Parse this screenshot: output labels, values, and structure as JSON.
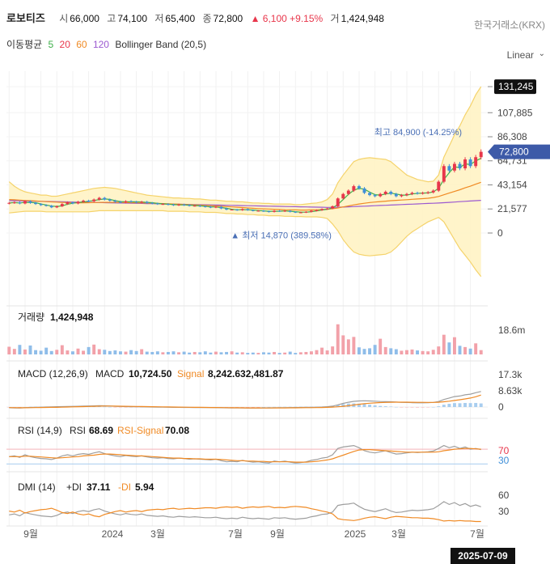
{
  "header": {
    "name": "로보티즈",
    "open_label": "시",
    "open": "66,000",
    "high_label": "고",
    "high": "74,100",
    "low_label": "저",
    "low": "65,400",
    "close_label": "종",
    "close": "72,800",
    "change": "▲ 6,100 +9.15%",
    "volume_label": "거",
    "volume": "1,424,948",
    "exchange": "한국거래소(KRX)"
  },
  "indicators": {
    "ma_label": "이동평균",
    "ma_periods": [
      "5",
      "20",
      "60",
      "120"
    ],
    "bb_label": "Bollinger Band (20,5)"
  },
  "scale_mode": "Linear",
  "colors": {
    "up": "#e8364b",
    "down": "#3f8fd8",
    "ma5": "#3fb04a",
    "ma20": "#e8364b",
    "ma60": "#f08a24",
    "ma120": "#9b59d0",
    "bb_fill": "#fff3c4",
    "bb_line": "#f5d36b",
    "macd": "#9e9e9e",
    "signal": "#f08a24"
  },
  "price_axis": {
    "ticks": [
      "131,245",
      "107,885",
      "86,308",
      "64,731",
      "43,154",
      "21,577",
      "0"
    ],
    "current_label": "72,800",
    "max_label": "131,245"
  },
  "annotations": {
    "high": "최고 84,900 (-14.25%)",
    "low": "▲ 최저 14,870 (389.58%)"
  },
  "panels": {
    "volume": {
      "title": "거래량",
      "value": "1,424,948",
      "axis": "18.6m"
    },
    "macd": {
      "title": "MACD (12,26,9)",
      "macd_label": "MACD",
      "macd_value": "10,724.50",
      "signal_label": "Signal",
      "signal_value": "8,242.632,481.87",
      "axis": [
        "17.3k",
        "8.63k",
        "0"
      ]
    },
    "rsi": {
      "title": "RSI (14,9)",
      "rsi_label": "RSI",
      "rsi_value": "68.69",
      "signal_label": "RSI-Signal",
      "signal_value": "70.08",
      "axis": [
        "70",
        "30"
      ]
    },
    "dmi": {
      "title": "DMI (14)",
      "pdi_label": "+DI",
      "pdi_value": "37.11",
      "mdi_label": "-DI",
      "mdi_value": "5.94",
      "axis": [
        "60",
        "30"
      ]
    }
  },
  "x_axis_labels": [
    "9월",
    "2024",
    "3월",
    "7월",
    "9월",
    "2025",
    "3월",
    "7월"
  ],
  "crosshair_date": "2025-07-09",
  "chart_data": {
    "type": "line",
    "series": [
      {
        "name": "Close",
        "values": [
          27000,
          27500,
          26500,
          28500,
          27000,
          26000,
          25000,
          24500,
          23000,
          24000,
          26000,
          27500,
          26500,
          28000,
          29000,
          28500,
          30000,
          31500,
          30000,
          29000,
          28000,
          27500,
          28500,
          28000,
          27500,
          28000,
          27000,
          26500,
          26000,
          26000,
          25500,
          25000,
          25500,
          25000,
          24500,
          24500,
          24000,
          23500,
          23000,
          23500,
          22000,
          21000,
          21000,
          20500,
          21500,
          20500,
          20000,
          20000,
          19500,
          19000,
          20000,
          19500,
          20000,
          19000,
          18500,
          18500,
          19000,
          20000,
          20500,
          21500,
          22000,
          24000,
          31000,
          35000,
          38000,
          42000,
          40000,
          36000,
          34000,
          33000,
          35000,
          37000,
          35000,
          33000,
          34000,
          35000,
          36000,
          35500,
          36000,
          36500,
          38000,
          46000,
          60000,
          56000,
          62000,
          58000,
          66000,
          60000,
          68000,
          72800
        ]
      },
      {
        "name": "BB Upper",
        "values": [
          46000,
          42000,
          39000,
          37000,
          36000,
          35000,
          34000,
          34000,
          33000,
          33000,
          34000,
          35000,
          36000,
          37000,
          38000,
          39000,
          40000,
          40500,
          41000,
          40500,
          40000,
          39000,
          38000,
          37000,
          36000,
          35000,
          34000,
          33500,
          33000,
          32500,
          32000,
          31500,
          31500,
          31000,
          31000,
          30500,
          30500,
          30000,
          29500,
          29500,
          29000,
          28500,
          28500,
          28000,
          28000,
          27500,
          27000,
          27000,
          26500,
          26500,
          26000,
          26000,
          26000,
          26000,
          25500,
          25500,
          26000,
          26500,
          27000,
          28000,
          30000,
          35000,
          45000,
          52000,
          58000,
          64000,
          66000,
          67000,
          67500,
          67000,
          66500,
          66000,
          64000,
          60000,
          56000,
          52000,
          50000,
          48000,
          47000,
          46000,
          46500,
          52000,
          68000,
          78000,
          88000,
          96000,
          106000,
          114000,
          124000,
          131245
        ]
      },
      {
        "name": "BB Lower",
        "values": [
          18000,
          18500,
          19000,
          19500,
          19500,
          19500,
          19500,
          19000,
          19000,
          19000,
          19000,
          19000,
          19000,
          19000,
          19000,
          19000,
          19500,
          20000,
          20000,
          20000,
          20000,
          20000,
          20000,
          20000,
          20000,
          20000,
          20000,
          20000,
          20000,
          20000,
          19500,
          19500,
          19500,
          19500,
          19000,
          19000,
          19000,
          18500,
          18500,
          18500,
          18000,
          17500,
          17500,
          17000,
          17000,
          16500,
          16500,
          16000,
          16000,
          15500,
          15500,
          15500,
          15000,
          15000,
          14800,
          14800,
          14500,
          14500,
          14500,
          14000,
          13000,
          8000,
          2000,
          -6000,
          -12000,
          -17000,
          -19000,
          -20000,
          -20500,
          -20000,
          -19500,
          -19000,
          -17000,
          -13000,
          -8000,
          -3000,
          1000,
          4000,
          7000,
          10000,
          12000,
          14000,
          10000,
          2000,
          -6000,
          -14000,
          -20000,
          -26000,
          -33000,
          -39000
        ]
      },
      {
        "name": "MA60",
        "values": [
          30000,
          29800,
          29500,
          29200,
          29000,
          28700,
          28400,
          28100,
          27900,
          27700,
          27500,
          27300,
          27200,
          27100,
          27100,
          27200,
          27300,
          27400,
          27500,
          27500,
          27500,
          27400,
          27300,
          27200,
          27100,
          27000,
          26900,
          26700,
          26500,
          26400,
          26200,
          26000,
          25800,
          25600,
          25400,
          25200,
          25000,
          24800,
          24600,
          24300,
          24000,
          23700,
          23400,
          23100,
          22800,
          22500,
          22200,
          21900,
          21700,
          21500,
          21300,
          21100,
          20900,
          20800,
          20700,
          20600,
          20600,
          20700,
          20800,
          21000,
          21300,
          21800,
          22500,
          23400,
          24300,
          25200,
          26000,
          26700,
          27300,
          27800,
          28200,
          28600,
          29000,
          29300,
          29600,
          29900,
          30200,
          30500,
          30800,
          31200,
          31800,
          32800,
          34300,
          35800,
          37300,
          38800,
          40500,
          42000,
          43800,
          45500
        ]
      },
      {
        "name": "MA120",
        "values": [
          29000,
          28900,
          28800,
          28700,
          28600,
          28500,
          28400,
          28300,
          28200,
          28100,
          28000,
          27900,
          27800,
          27700,
          27600,
          27500,
          27400,
          27300,
          27200,
          27100,
          27000,
          26900,
          26800,
          26700,
          26600,
          26500,
          26400,
          26300,
          26200,
          26100,
          26000,
          25900,
          25800,
          25700,
          25600,
          25500,
          25400,
          25300,
          25200,
          25100,
          25000,
          24900,
          24800,
          24700,
          24600,
          24500,
          24400,
          24300,
          24200,
          24100,
          24000,
          23900,
          23800,
          23700,
          23600,
          23500,
          23400,
          23300,
          23200,
          23100,
          23000,
          23000,
          23100,
          23300,
          23500,
          23700,
          23900,
          24100,
          24300,
          24500,
          24700,
          24900,
          25100,
          25300,
          25500,
          25700,
          25900,
          26100,
          26300,
          26500,
          26700,
          26900,
          27200,
          27500,
          27800,
          28100,
          28400,
          28700,
          29000,
          29300
        ]
      }
    ],
    "ylim": [
      -45000,
      140000
    ],
    "high": 84900,
    "low": 14870,
    "last_close": 72800,
    "volume": [
      2.5,
      1.8,
      3.1,
      1.6,
      2.9,
      1.4,
      1.2,
      2.2,
      1.1,
      1.5,
      3.0,
      1.3,
      1.0,
      1.9,
      1.2,
      2.4,
      3.2,
      1.7,
      1.5,
      1.1,
      1.3,
      1.0,
      0.9,
      1.4,
      1.1,
      1.7,
      0.9,
      0.8,
      1.0,
      0.7,
      0.8,
      1.0,
      0.7,
      0.9,
      0.6,
      0.8,
      0.7,
      1.0,
      0.6,
      0.9,
      0.7,
      0.8,
      1.0,
      0.6,
      0.7,
      0.5,
      0.6,
      0.5,
      0.7,
      0.6,
      0.8,
      0.5,
      0.6,
      0.9,
      0.5,
      0.7,
      0.8,
      1.0,
      1.4,
      2.2,
      1.3,
      2.6,
      9.8,
      6.2,
      4.9,
      5.7,
      2.3,
      1.8,
      2.0,
      3.1,
      5.1,
      2.4,
      2.0,
      1.7,
      1.2,
      1.4,
      1.6,
      1.3,
      1.1,
      1.0,
      1.5,
      2.6,
      6.4,
      3.9,
      5.6,
      2.8,
      2.4,
      1.9,
      3.6,
      1.4
    ],
    "volume_unit": "m",
    "macd": [
      -500,
      -600,
      -700,
      -500,
      -300,
      -200,
      -100,
      0,
      100,
      200,
      300,
      400,
      450,
      500,
      600,
      700,
      800,
      900,
      850,
      700,
      500,
      400,
      300,
      200,
      150,
      100,
      50,
      0,
      -50,
      -100,
      -150,
      -200,
      -250,
      -300,
      -300,
      -350,
      -350,
      -400,
      -400,
      -450,
      -500,
      -550,
      -600,
      -650,
      -650,
      -700,
      -700,
      -700,
      -650,
      -600,
      -550,
      -500,
      -450,
      -400,
      -350,
      -300,
      -250,
      -200,
      -100,
      0,
      200,
      600,
      1500,
      2500,
      3300,
      3900,
      4200,
      4300,
      4200,
      4000,
      3800,
      3700,
      3600,
      3400,
      3200,
      3100,
      3000,
      2900,
      2900,
      3000,
      3200,
      3800,
      5200,
      6200,
      7200,
      7600,
      8400,
      8900,
      9900,
      10724.5
    ],
    "macd_signal": [
      -400,
      -450,
      -500,
      -500,
      -450,
      -400,
      -350,
      -300,
      -250,
      -200,
      -100,
      0,
      100,
      200,
      300,
      400,
      500,
      600,
      650,
      650,
      620,
      580,
      520,
      460,
      400,
      340,
      280,
      220,
      160,
      100,
      50,
      0,
      -50,
      -100,
      -150,
      -200,
      -240,
      -280,
      -320,
      -360,
      -400,
      -440,
      -480,
      -520,
      -560,
      -590,
      -620,
      -640,
      -650,
      -650,
      -640,
      -620,
      -600,
      -570,
      -540,
      -500,
      -460,
      -420,
      -370,
      -310,
      -220,
      -80,
      150,
      500,
      900,
      1400,
      1900,
      2300,
      2600,
      2850,
      3050,
      3200,
      3300,
      3350,
      3350,
      3330,
      3300,
      3260,
      3220,
      3200,
      3200,
      3300,
      3600,
      4000,
      4500,
      5000,
      5600,
      6200,
      7100,
      8242.6
    ],
    "rsi": [
      50,
      52,
      48,
      55,
      50,
      47,
      45,
      44,
      42,
      46,
      52,
      55,
      52,
      56,
      58,
      56,
      60,
      63,
      58,
      55,
      52,
      50,
      53,
      51,
      50,
      52,
      49,
      47,
      46,
      47,
      45,
      44,
      46,
      45,
      43,
      44,
      43,
      42,
      41,
      43,
      39,
      36,
      37,
      36,
      40,
      37,
      35,
      36,
      34,
      33,
      38,
      36,
      38,
      35,
      33,
      34,
      36,
      40,
      42,
      46,
      48,
      55,
      72,
      76,
      78,
      80,
      74,
      66,
      62,
      60,
      63,
      66,
      61,
      57,
      58,
      60,
      62,
      61,
      62,
      63,
      65,
      72,
      80,
      74,
      78,
      72,
      76,
      70,
      72,
      68.69
    ],
    "rsi_signal": [
      50,
      50,
      50,
      51,
      51,
      50,
      49,
      48,
      47,
      46,
      47,
      48,
      49,
      50,
      52,
      53,
      54,
      56,
      57,
      57,
      56,
      55,
      54,
      53,
      52,
      52,
      51,
      50,
      49,
      48,
      47,
      46,
      46,
      45,
      45,
      44,
      44,
      43,
      43,
      43,
      42,
      41,
      40,
      39,
      39,
      38,
      38,
      37,
      37,
      36,
      36,
      36,
      36,
      36,
      35,
      35,
      35,
      36,
      37,
      39,
      41,
      44,
      49,
      54,
      59,
      64,
      68,
      69,
      69,
      68,
      67,
      66,
      65,
      64,
      63,
      62,
      62,
      62,
      62,
      62,
      62,
      63,
      66,
      68,
      70,
      71,
      72,
      72,
      71,
      70.08
    ],
    "pdi": [
      20,
      22,
      18,
      25,
      22,
      20,
      18,
      17,
      16,
      19,
      24,
      26,
      23,
      27,
      29,
      27,
      31,
      33,
      28,
      25,
      22,
      20,
      23,
      21,
      20,
      22,
      19,
      18,
      17,
      18,
      16,
      15,
      17,
      16,
      15,
      16,
      15,
      14,
      14,
      15,
      13,
      12,
      13,
      12,
      15,
      13,
      12,
      13,
      12,
      11,
      14,
      13,
      14,
      12,
      11,
      12,
      13,
      16,
      18,
      21,
      22,
      26,
      40,
      42,
      43,
      45,
      38,
      32,
      29,
      27,
      30,
      33,
      28,
      25,
      26,
      28,
      30,
      29,
      30,
      31,
      33,
      40,
      48,
      42,
      46,
      40,
      44,
      38,
      41,
      37.11
    ],
    "mdi": [
      28,
      26,
      30,
      24,
      27,
      29,
      31,
      32,
      34,
      30,
      25,
      23,
      26,
      22,
      20,
      22,
      18,
      16,
      21,
      24,
      27,
      29,
      26,
      28,
      29,
      27,
      30,
      31,
      32,
      31,
      33,
      34,
      32,
      33,
      34,
      33,
      34,
      35,
      35,
      34,
      36,
      37,
      36,
      37,
      34,
      36,
      37,
      36,
      37,
      38,
      35,
      36,
      35,
      37,
      38,
      37,
      36,
      33,
      31,
      28,
      26,
      22,
      12,
      10,
      9,
      8,
      10,
      13,
      15,
      16,
      14,
      12,
      15,
      17,
      16,
      15,
      14,
      14,
      13,
      13,
      12,
      10,
      7,
      8,
      7,
      8,
      7,
      7,
      6,
      5.94
    ]
  }
}
